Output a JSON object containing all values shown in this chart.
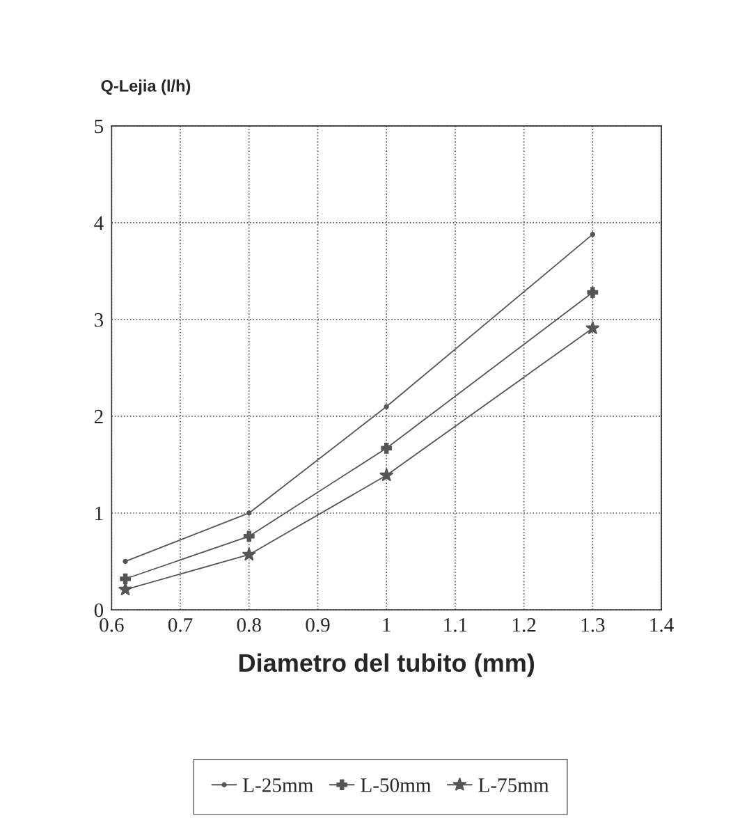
{
  "chart_data": {
    "type": "line",
    "ylabel": "Q-Lejia (l/h)",
    "xlabel": "Diametro del tubito (mm)",
    "x": [
      0.62,
      0.8,
      1.0,
      1.3
    ],
    "series": [
      {
        "name": "L-25mm",
        "color": "#555555",
        "marker": "circle",
        "values": [
          0.5,
          1.0,
          2.1,
          3.88
        ]
      },
      {
        "name": "L-50mm",
        "color": "#555555",
        "marker": "cross",
        "values": [
          0.32,
          0.76,
          1.67,
          3.28
        ]
      },
      {
        "name": "L-75mm",
        "color": "#555555",
        "marker": "star",
        "values": [
          0.21,
          0.57,
          1.39,
          2.91
        ]
      }
    ],
    "xlim": [
      0.6,
      1.4
    ],
    "xticks": [
      0.6,
      0.7,
      0.8,
      0.9,
      1,
      1.1,
      1.2,
      1.3,
      1.4
    ],
    "ylim": [
      0,
      5
    ],
    "yticks": [
      0,
      1,
      2,
      3,
      4,
      5
    ],
    "grid": true,
    "legend": "bottom",
    "line_style": "solid"
  }
}
